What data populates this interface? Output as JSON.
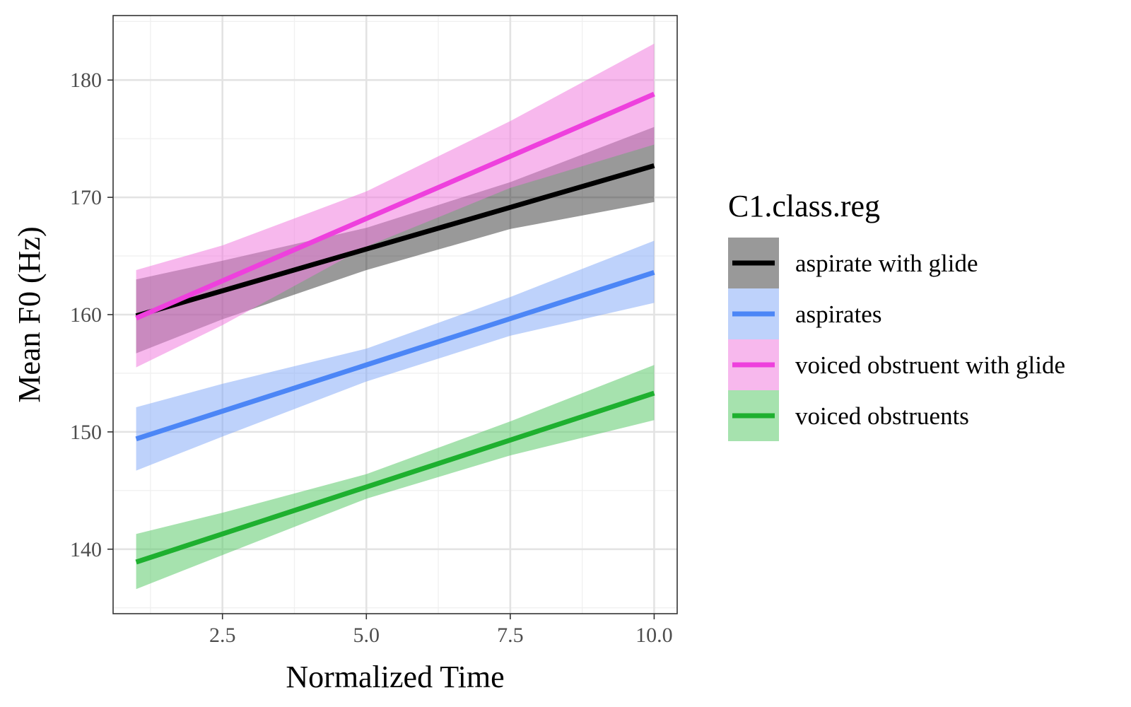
{
  "chart_data": {
    "type": "line",
    "title": "",
    "xlabel": "Normalized Time",
    "ylabel": "Mean F0 (Hz)",
    "xlim": [
      0.6,
      10.4
    ],
    "ylim": [
      134.5,
      185.5
    ],
    "x_ticks": [
      2.5,
      5.0,
      7.5,
      10.0
    ],
    "x_tick_labels": [
      "2.5",
      "5.0",
      "7.5",
      "10.0"
    ],
    "y_ticks": [
      140,
      150,
      160,
      170,
      180
    ],
    "y_tick_labels": [
      "140",
      "150",
      "160",
      "170",
      "180"
    ],
    "grid": true,
    "legend": {
      "title": "C1.class.reg",
      "position": "right"
    },
    "series": [
      {
        "name": "aspirate with glide",
        "color": "#000000",
        "fill": "#000000",
        "fill_opacity": 0.4,
        "x": [
          1,
          10
        ],
        "y": [
          159.9,
          172.7
        ],
        "band": [
          {
            "x": 1,
            "lower": 156.7,
            "upper": 163.0
          },
          {
            "x": 2.5,
            "lower": 159.6,
            "upper": 164.6
          },
          {
            "x": 5,
            "lower": 163.8,
            "upper": 167.4
          },
          {
            "x": 7.5,
            "lower": 167.3,
            "upper": 171.3
          },
          {
            "x": 10,
            "lower": 169.6,
            "upper": 176.0
          }
        ]
      },
      {
        "name": "aspirates",
        "color": "#4c86f6",
        "fill": "#7ea5f8",
        "fill_opacity": 0.5,
        "x": [
          1,
          10
        ],
        "y": [
          149.4,
          163.6
        ],
        "band": [
          {
            "x": 1,
            "lower": 146.7,
            "upper": 152.1
          },
          {
            "x": 2.5,
            "lower": 149.6,
            "upper": 154.1
          },
          {
            "x": 5,
            "lower": 154.3,
            "upper": 157.1
          },
          {
            "x": 7.5,
            "lower": 158.2,
            "upper": 161.5
          },
          {
            "x": 10,
            "lower": 161.0,
            "upper": 166.3
          }
        ]
      },
      {
        "name": "voiced obstruent with glide",
        "color": "#ee40dd",
        "fill": "#f07ddf",
        "fill_opacity": 0.55,
        "x": [
          1,
          10
        ],
        "y": [
          159.7,
          178.8
        ],
        "band": [
          {
            "x": 1,
            "lower": 155.5,
            "upper": 163.8
          },
          {
            "x": 2.5,
            "lower": 159.1,
            "upper": 165.9
          },
          {
            "x": 5,
            "lower": 165.8,
            "upper": 170.5
          },
          {
            "x": 7.5,
            "lower": 170.8,
            "upper": 176.5
          },
          {
            "x": 10,
            "lower": 174.5,
            "upper": 183.1
          }
        ]
      },
      {
        "name": "voiced obstruents",
        "color": "#1eb02f",
        "fill": "#5ccb6c",
        "fill_opacity": 0.55,
        "x": [
          1,
          10
        ],
        "y": [
          138.9,
          153.3
        ],
        "band": [
          {
            "x": 1,
            "lower": 136.6,
            "upper": 141.3
          },
          {
            "x": 2.5,
            "lower": 139.5,
            "upper": 143.1
          },
          {
            "x": 5,
            "lower": 144.3,
            "upper": 146.4
          },
          {
            "x": 7.5,
            "lower": 148.0,
            "upper": 150.9
          },
          {
            "x": 10,
            "lower": 151.0,
            "upper": 155.7
          }
        ]
      }
    ]
  }
}
